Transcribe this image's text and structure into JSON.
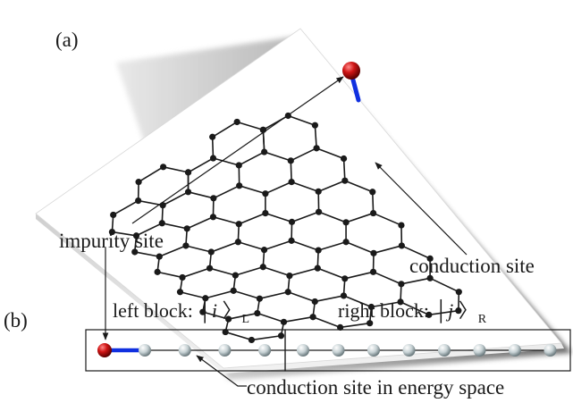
{
  "panel_a": {
    "label": "(a)",
    "impurity_label": "impurity site",
    "conduction_label": "conduction site",
    "colors": {
      "sheet": "#ffffff",
      "bond": "#1a1a1a",
      "atom": "#1a1a1a",
      "impurity": "#cc1111",
      "coupling": "#1030e0"
    }
  },
  "panel_b": {
    "label": "(b)",
    "left_block_label": "left block:",
    "left_ket_symbol": "i",
    "left_ket_subscript": "L",
    "right_block_label": "right block:",
    "right_ket_symbol": "j",
    "right_ket_subscript": "R",
    "energy_site_label": "conduction site in energy space",
    "left_chain_sites": 4,
    "right_chain_sites": 8,
    "colors": {
      "impurity": "#cc1111",
      "coupling": "#1030e0",
      "site": "#c9d3d6"
    }
  }
}
